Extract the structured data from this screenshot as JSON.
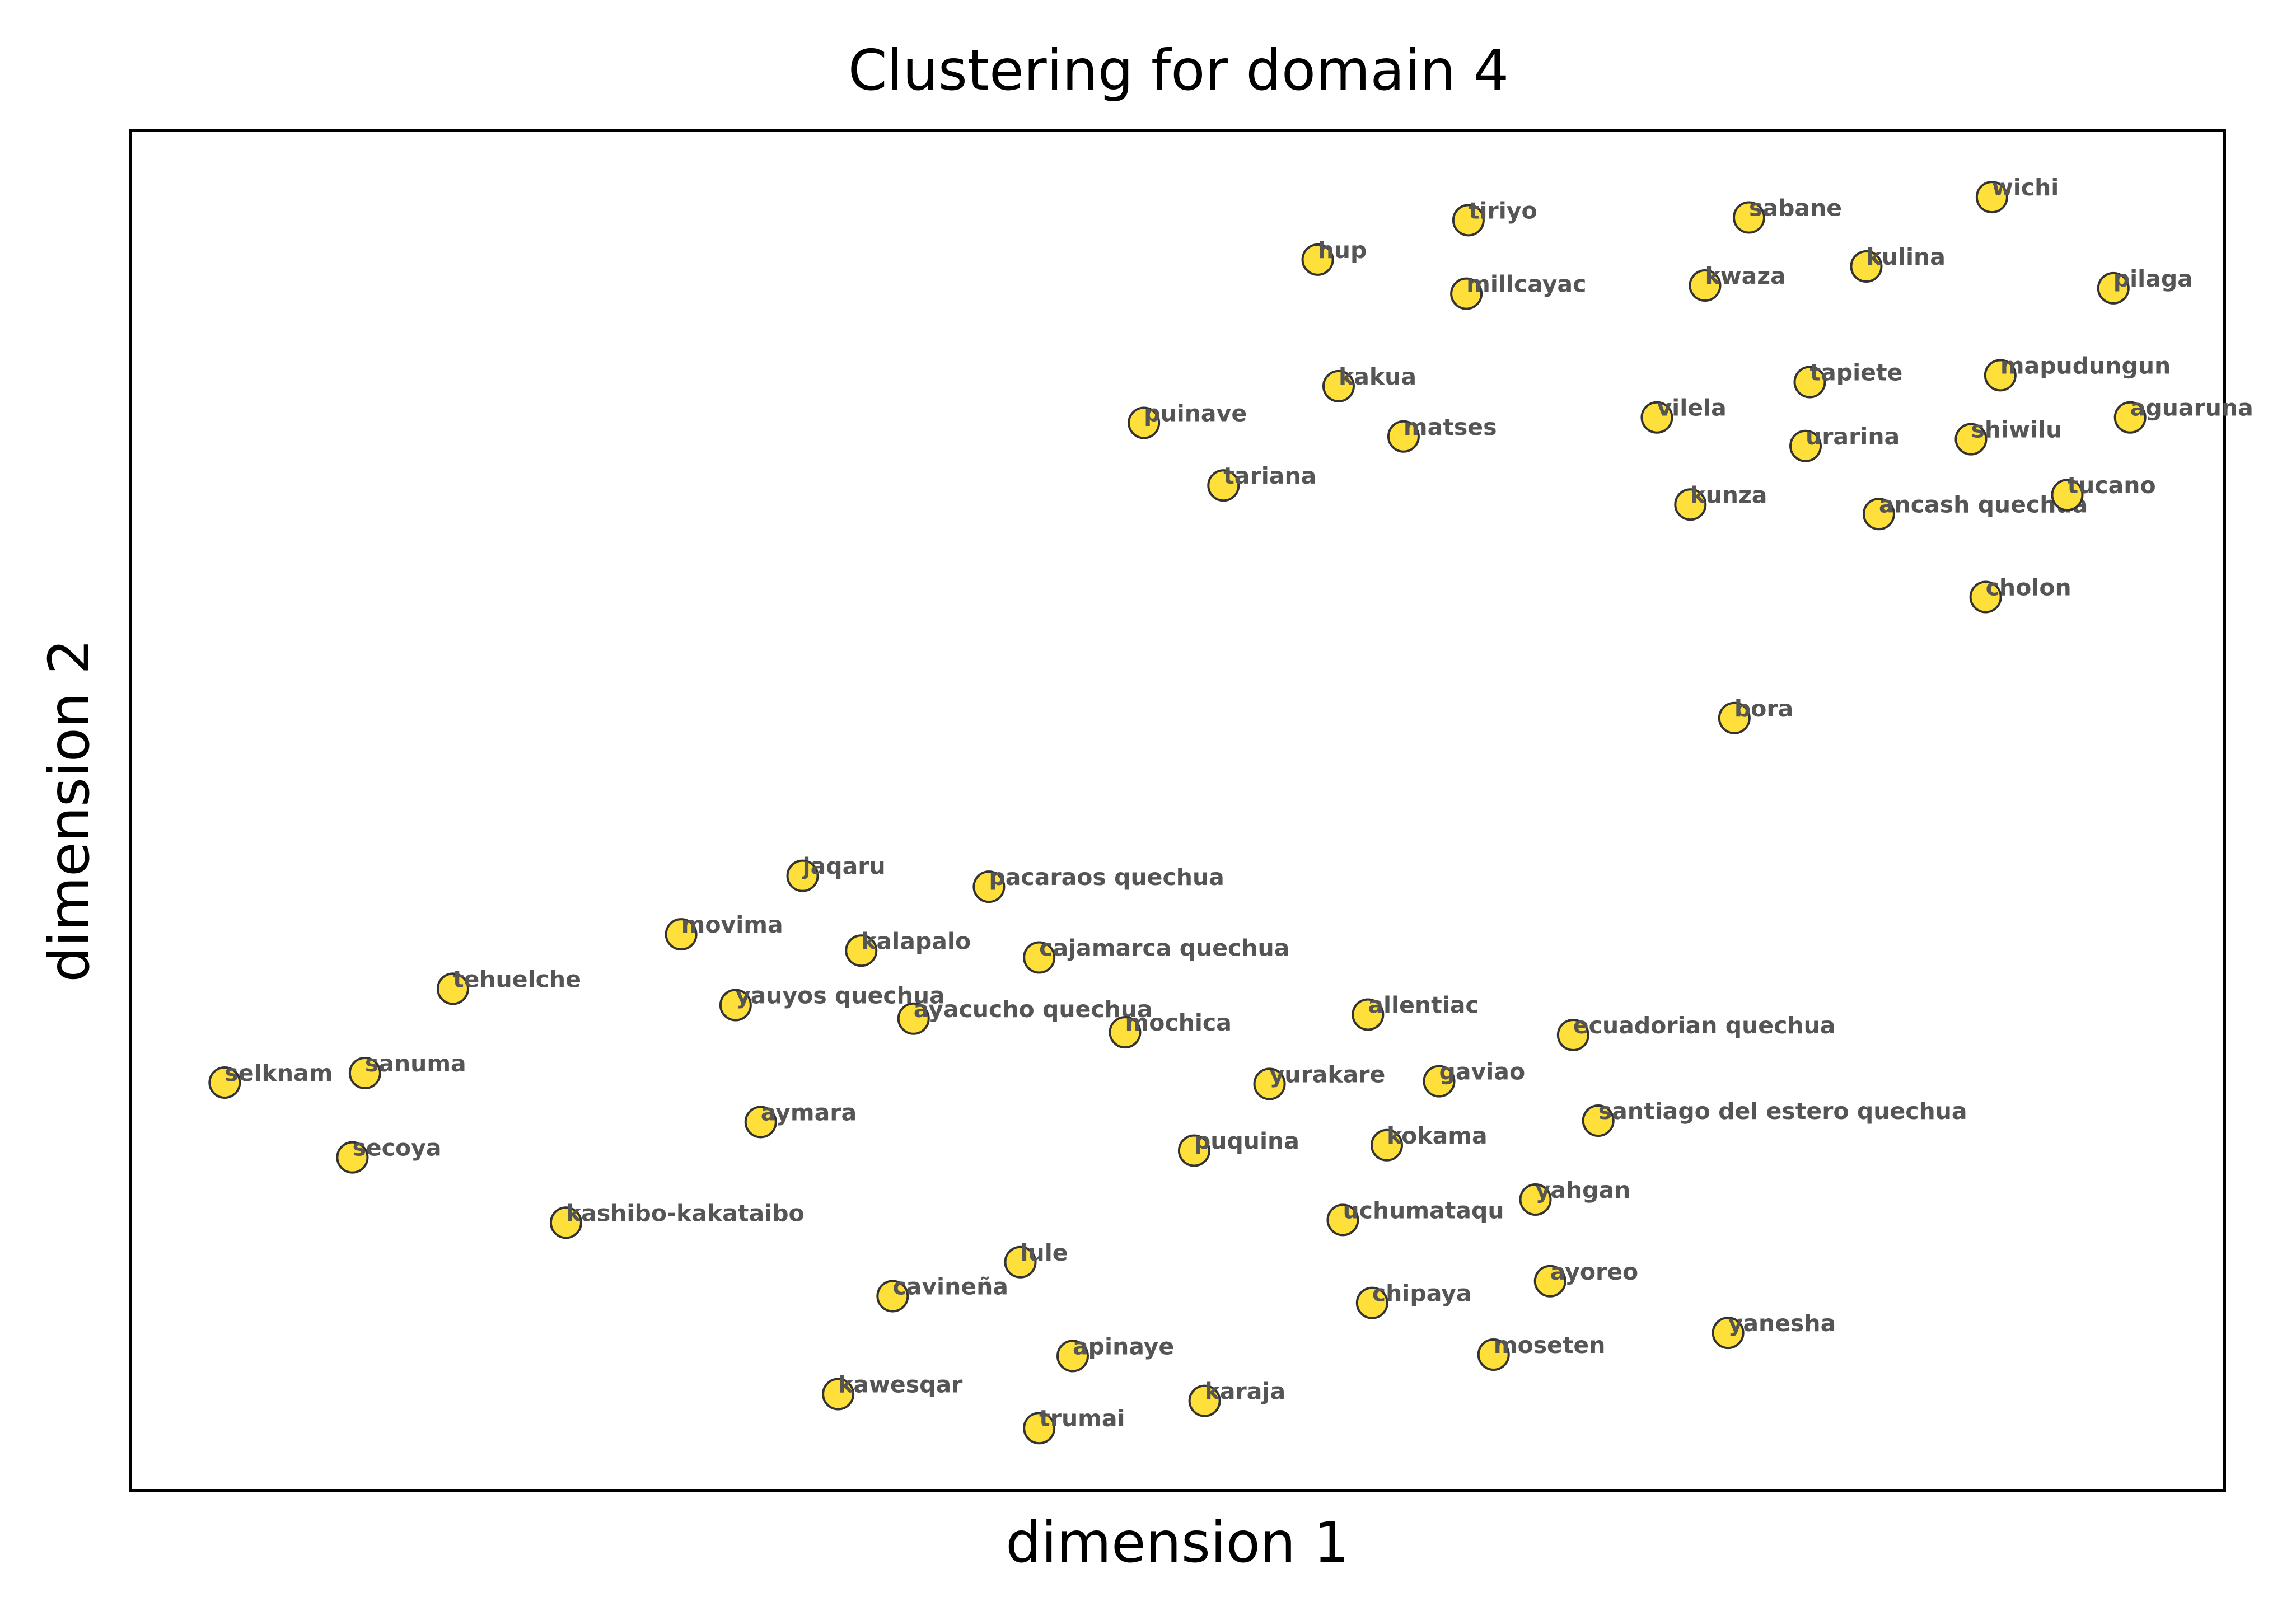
{
  "chart_data": {
    "type": "scatter",
    "title": "Clustering for domain 4",
    "xlabel": "dimension 1",
    "ylabel": "dimension 2",
    "xlim": [
      0,
      100
    ],
    "ylim": [
      0,
      100
    ],
    "grid": false,
    "legend": "none",
    "ticks": "hidden",
    "point_color": "#FFE03A",
    "point_edge_color": "#333333",
    "label_color": "#555555",
    "points": [
      {
        "label": "tiriyo",
        "x": 63.9,
        "y": 93.4
      },
      {
        "label": "sabane",
        "x": 77.3,
        "y": 93.6
      },
      {
        "label": "wichi",
        "x": 88.9,
        "y": 95.1
      },
      {
        "label": "hup",
        "x": 56.7,
        "y": 90.5
      },
      {
        "label": "millcayac",
        "x": 63.8,
        "y": 88.0
      },
      {
        "label": "kwaza",
        "x": 75.2,
        "y": 88.6
      },
      {
        "label": "kulina",
        "x": 82.9,
        "y": 90.0
      },
      {
        "label": "pilaga",
        "x": 94.7,
        "y": 88.4
      },
      {
        "label": "kakua",
        "x": 57.7,
        "y": 81.2
      },
      {
        "label": "tapiete",
        "x": 80.2,
        "y": 81.5
      },
      {
        "label": "mapudungun",
        "x": 89.3,
        "y": 82.0
      },
      {
        "label": "puinave",
        "x": 48.4,
        "y": 78.5
      },
      {
        "label": "matses",
        "x": 60.8,
        "y": 77.5
      },
      {
        "label": "vilela",
        "x": 72.9,
        "y": 78.9
      },
      {
        "label": "urarina",
        "x": 80.0,
        "y": 76.8
      },
      {
        "label": "shiwilu",
        "x": 87.9,
        "y": 77.3
      },
      {
        "label": "aguaruna",
        "x": 95.5,
        "y": 78.9
      },
      {
        "label": "tariana",
        "x": 52.2,
        "y": 73.9
      },
      {
        "label": "kunza",
        "x": 74.5,
        "y": 72.5
      },
      {
        "label": "ancash quechua",
        "x": 83.5,
        "y": 71.8
      },
      {
        "label": "tucano",
        "x": 92.5,
        "y": 73.2
      },
      {
        "label": "cholon",
        "x": 88.6,
        "y": 65.7
      },
      {
        "label": "bora",
        "x": 76.6,
        "y": 56.8
      },
      {
        "label": "jaqaru",
        "x": 32.1,
        "y": 45.2
      },
      {
        "label": "pacaraos quechua",
        "x": 41.0,
        "y": 44.4
      },
      {
        "label": "movima",
        "x": 26.3,
        "y": 40.9
      },
      {
        "label": "kalapalo",
        "x": 34.9,
        "y": 39.7
      },
      {
        "label": "cajamarca quechua",
        "x": 43.4,
        "y": 39.2
      },
      {
        "label": "tehuelche",
        "x": 15.4,
        "y": 36.9
      },
      {
        "label": "yauyos quechua",
        "x": 28.9,
        "y": 35.7
      },
      {
        "label": "ayacucho quechua",
        "x": 37.4,
        "y": 34.7
      },
      {
        "label": "mochica",
        "x": 47.5,
        "y": 33.7
      },
      {
        "label": "allentiac",
        "x": 59.1,
        "y": 35.0
      },
      {
        "label": "ecuadorian quechua",
        "x": 68.9,
        "y": 33.5
      },
      {
        "label": "selknam",
        "x": 4.5,
        "y": 30.0
      },
      {
        "label": "sanuma",
        "x": 11.2,
        "y": 30.7
      },
      {
        "label": "yurakare",
        "x": 54.4,
        "y": 29.9
      },
      {
        "label": "gaviao",
        "x": 62.5,
        "y": 30.1
      },
      {
        "label": "aymara",
        "x": 30.1,
        "y": 27.1
      },
      {
        "label": "santiago del estero quechua",
        "x": 70.1,
        "y": 27.2
      },
      {
        "label": "secoya",
        "x": 10.6,
        "y": 24.5
      },
      {
        "label": "puquina",
        "x": 50.8,
        "y": 25.0
      },
      {
        "label": "kokama",
        "x": 60.0,
        "y": 25.4
      },
      {
        "label": "yahgan",
        "x": 67.1,
        "y": 21.4
      },
      {
        "label": "kashibo-kakataibo",
        "x": 20.8,
        "y": 19.7
      },
      {
        "label": "uchumataqu",
        "x": 57.9,
        "y": 19.9
      },
      {
        "label": "lule",
        "x": 42.5,
        "y": 16.8
      },
      {
        "label": "cavineña",
        "x": 36.4,
        "y": 14.3
      },
      {
        "label": "chipaya",
        "x": 59.3,
        "y": 13.8
      },
      {
        "label": "ayoreo",
        "x": 67.8,
        "y": 15.4
      },
      {
        "label": "yanesha",
        "x": 76.3,
        "y": 11.6
      },
      {
        "label": "apinaye",
        "x": 45.0,
        "y": 9.9
      },
      {
        "label": "moseten",
        "x": 65.1,
        "y": 10.0
      },
      {
        "label": "kawesqar",
        "x": 33.8,
        "y": 7.1
      },
      {
        "label": "karaja",
        "x": 51.3,
        "y": 6.6
      },
      {
        "label": "trumai",
        "x": 43.4,
        "y": 4.6
      }
    ]
  }
}
